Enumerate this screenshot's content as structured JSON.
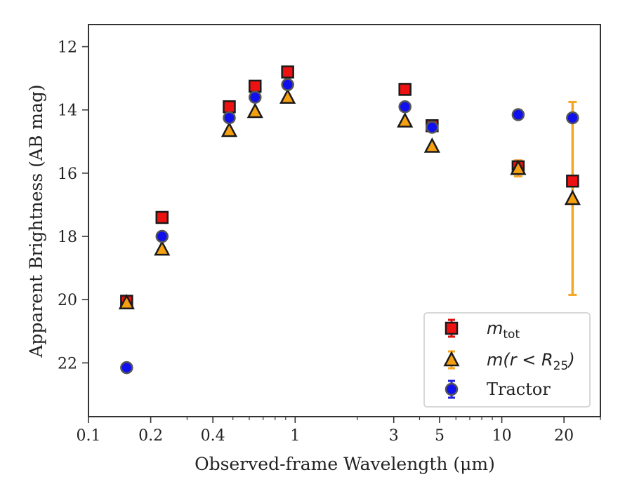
{
  "chart_data": {
    "type": "scatter",
    "title": "",
    "xlabel": "Observed-frame Wavelength (μm)",
    "ylabel": "Apparent Brightness (AB mag)",
    "xscale": "log",
    "xlim": [
      0.1,
      30
    ],
    "ylim": [
      23.7,
      11.3
    ],
    "y_inverted": true,
    "grid": false,
    "legend_position": "lower-right",
    "xticks": [
      {
        "value": 0.1,
        "label": "0.1"
      },
      {
        "value": 0.2,
        "label": "0.2"
      },
      {
        "value": 0.4,
        "label": "0.4"
      },
      {
        "value": 1,
        "label": "1"
      },
      {
        "value": 3,
        "label": "3"
      },
      {
        "value": 5,
        "label": "5"
      },
      {
        "value": 10,
        "label": "10"
      },
      {
        "value": 20,
        "label": "20"
      }
    ],
    "yticks": [
      {
        "value": 12,
        "label": "12"
      },
      {
        "value": 14,
        "label": "14"
      },
      {
        "value": 16,
        "label": "16"
      },
      {
        "value": 18,
        "label": "18"
      },
      {
        "value": 20,
        "label": "20"
      },
      {
        "value": 22,
        "label": "22"
      }
    ],
    "series": [
      {
        "legend": {
          "main": "m",
          "sub": "tot",
          "rest": ""
        },
        "marker": "square",
        "fill": "#ee1111",
        "edge": "#1a1a1a",
        "errcolor": "#dd1111",
        "points": [
          {
            "x": 0.153,
            "y": 20.05
          },
          {
            "x": 0.227,
            "y": 17.4
          },
          {
            "x": 0.48,
            "y": 13.9
          },
          {
            "x": 0.64,
            "y": 13.25
          },
          {
            "x": 0.92,
            "y": 12.8
          },
          {
            "x": 3.4,
            "y": 13.35
          },
          {
            "x": 4.6,
            "y": 14.5
          },
          {
            "x": 12.0,
            "y": 15.8,
            "err": 0.2
          },
          {
            "x": 22.0,
            "y": 16.25
          }
        ]
      },
      {
        "legend": {
          "main": "m",
          "sub": "25",
          "pre": "(r < R",
          "rest": ")"
        },
        "marker": "triangle",
        "fill": "#f5a010",
        "edge": "#1a1a1a",
        "errcolor": "#f5a623",
        "points": [
          {
            "x": 0.153,
            "y": 20.1
          },
          {
            "x": 0.227,
            "y": 18.4
          },
          {
            "x": 0.48,
            "y": 14.65
          },
          {
            "x": 0.64,
            "y": 14.05
          },
          {
            "x": 0.92,
            "y": 13.6
          },
          {
            "x": 3.4,
            "y": 14.35
          },
          {
            "x": 4.6,
            "y": 15.15
          },
          {
            "x": 12.0,
            "y": 15.85,
            "err": 0.25
          },
          {
            "x": 22.0,
            "y": 16.8,
            "err_up": 3.05,
            "err_down": 3.05
          }
        ]
      },
      {
        "legend": {
          "text": "Tractor"
        },
        "marker": "circle",
        "fill": "#1010ee",
        "edge": "#555555",
        "errcolor": "#2222dd",
        "points": [
          {
            "x": 0.153,
            "y": 22.15
          },
          {
            "x": 0.227,
            "y": 18.0
          },
          {
            "x": 0.48,
            "y": 14.25
          },
          {
            "x": 0.64,
            "y": 13.6
          },
          {
            "x": 0.92,
            "y": 13.2
          },
          {
            "x": 3.4,
            "y": 13.9
          },
          {
            "x": 4.6,
            "y": 14.55
          },
          {
            "x": 12.0,
            "y": 14.15
          },
          {
            "x": 22.0,
            "y": 14.25
          }
        ]
      }
    ]
  }
}
